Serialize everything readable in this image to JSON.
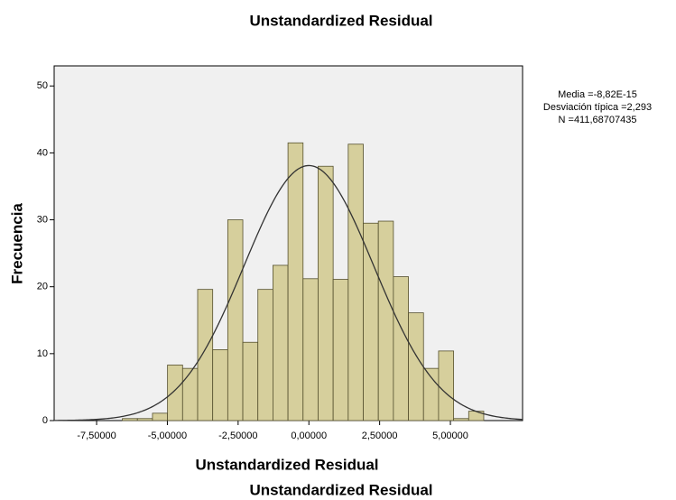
{
  "chart_data": {
    "type": "histogram",
    "title": "Unstandardized Residual",
    "x_label": "Unstandardized Residual",
    "y_label": "Frecuencia",
    "footer": "Unstandardized Residual",
    "bins": [
      -6.59,
      -6.058,
      -5.526,
      -4.994,
      -4.462,
      -3.93,
      -3.398,
      -2.866,
      -2.334,
      -1.802,
      -1.27,
      -0.738,
      -0.206,
      0.326,
      0.858,
      1.39,
      1.922,
      2.454,
      2.986,
      3.518,
      4.05,
      4.582,
      5.114,
      5.646,
      6.178
    ],
    "values": [
      0.3,
      0.3,
      1.1,
      8.3,
      7.8,
      19.6,
      10.6,
      30,
      11.7,
      19.6,
      23.2,
      41.5,
      21.2,
      38,
      21.1,
      41.3,
      29.5,
      29.8,
      21.5,
      16.1,
      7.8,
      10.4,
      0.3,
      1.4
    ],
    "color": "#d6cf9c",
    "curve_color": "#333333",
    "stats": [
      {
        "value": -8.82e-15,
        "label": "Media =-8,82E-15"
      },
      {
        "value": 2.293,
        "label": "Desviación típica =2,293"
      },
      {
        "value": 411.68707435,
        "label": "N =411,68707435"
      }
    ],
    "xlim": [
      -9.0,
      7.55
    ],
    "ylim": [
      0,
      53
    ],
    "xticks": [
      {
        "value": -7.5,
        "label": "-7,50000"
      },
      {
        "value": -5,
        "label": "-5,00000"
      },
      {
        "value": -2.5,
        "label": "-2,50000"
      },
      {
        "value": 0,
        "label": "0,00000"
      },
      {
        "value": 2.5,
        "label": "2,50000"
      },
      {
        "value": 5,
        "label": "5,00000"
      }
    ],
    "yticks": [
      0,
      10,
      20,
      30,
      40,
      50
    ]
  }
}
